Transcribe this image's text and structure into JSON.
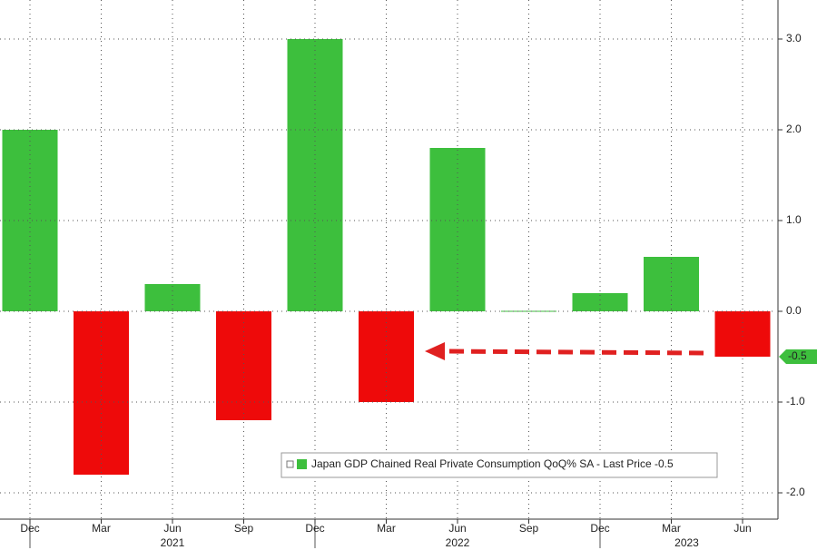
{
  "chart_data": {
    "type": "bar",
    "categories": [
      "Dec",
      "Mar",
      "Jun",
      "Sep",
      "Dec",
      "Mar",
      "Jun",
      "Sep",
      "Dec",
      "Mar",
      "Jun"
    ],
    "year_labels": [
      "2021",
      "2022",
      "2023"
    ],
    "series": [
      {
        "name": "Japan GDP Chained Real Private Consumption QoQ% SA - Last Price -0.5",
        "values": [
          2.0,
          -1.8,
          0.3,
          -1.2,
          3.0,
          -1.0,
          1.8,
          0.0,
          0.2,
          0.6,
          -0.5
        ]
      }
    ],
    "positive_color": "#3dbf3d",
    "negative_color": "#ee0a0a",
    "last_value": {
      "value": -0.5,
      "label": "-0.5"
    },
    "ylim": [
      -2.29,
      3.43
    ],
    "yticks": [
      {
        "value": -2,
        "label": "-2.0"
      },
      {
        "value": -1,
        "label": "-1.0"
      },
      {
        "value": 0,
        "label": "0.0"
      },
      {
        "value": 1,
        "label": "1.0"
      },
      {
        "value": 2,
        "label": "2.0"
      },
      {
        "value": 3,
        "label": "3.0"
      }
    ],
    "grid": true
  }
}
